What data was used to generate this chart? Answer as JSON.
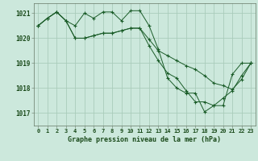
{
  "title": "Graphe pression niveau de la mer (hPa)",
  "background_color": "#cce8dc",
  "grid_color": "#aaccbb",
  "line_color": "#1a5c28",
  "x_labels": [
    "0",
    "1",
    "2",
    "3",
    "4",
    "5",
    "6",
    "7",
    "8",
    "9",
    "10",
    "11",
    "12",
    "13",
    "14",
    "15",
    "16",
    "17",
    "18",
    "19",
    "20",
    "21",
    "22",
    "23"
  ],
  "ylim": [
    1016.5,
    1021.4
  ],
  "yticks": [
    1017,
    1018,
    1019,
    1020,
    1021
  ],
  "series": [
    [
      1020.5,
      1020.8,
      1021.05,
      1020.7,
      1020.5,
      1021.0,
      1020.8,
      1021.05,
      1021.05,
      1020.7,
      1021.1,
      1021.1,
      1020.5,
      1019.55,
      1018.4,
      1018.0,
      1017.8,
      1017.8,
      1017.05,
      1017.3,
      1017.3,
      1018.55,
      1019.0,
      1019.0
    ],
    [
      1020.5,
      1020.8,
      1021.05,
      1020.7,
      1020.0,
      1020.0,
      1020.1,
      1020.2,
      1020.2,
      1020.3,
      1020.4,
      1020.4,
      1019.95,
      1019.5,
      1019.3,
      1019.1,
      1018.9,
      1018.75,
      1018.5,
      1018.2,
      1018.1,
      1017.95,
      1018.35,
      1019.0
    ],
    [
      1020.5,
      1020.8,
      1021.05,
      1020.7,
      1020.0,
      1020.0,
      1020.1,
      1020.2,
      1020.2,
      1020.3,
      1020.4,
      1020.4,
      1019.7,
      1019.1,
      1018.6,
      1018.4,
      1017.9,
      1017.45,
      1017.45,
      1017.3,
      1017.6,
      1017.9,
      1018.5,
      1019.0
    ]
  ],
  "figsize": [
    3.2,
    2.0
  ],
  "dpi": 100
}
